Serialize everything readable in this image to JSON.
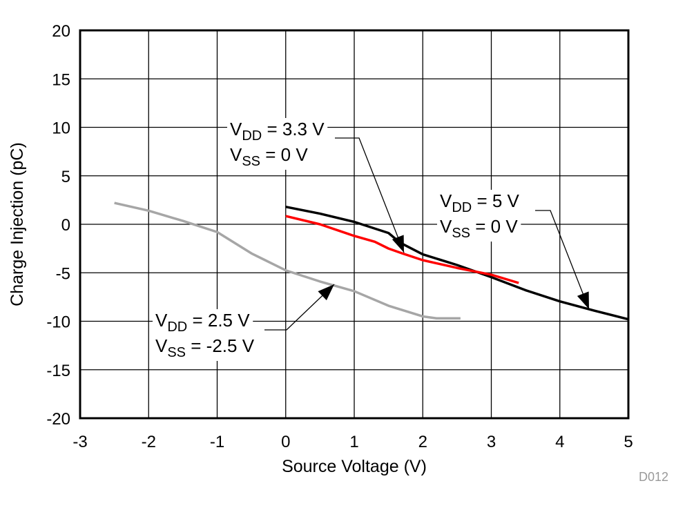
{
  "chart_data": {
    "type": "line",
    "xlabel": "Source Voltage (V)",
    "ylabel": "Charge Injection (pC)",
    "xlim": [
      -3,
      5
    ],
    "ylim": [
      -20,
      20
    ],
    "xticks": [
      -3,
      -2,
      -1,
      0,
      1,
      2,
      3,
      4,
      5
    ],
    "yticks": [
      -20,
      -15,
      -10,
      -5,
      0,
      5,
      10,
      15,
      20
    ],
    "grid": true,
    "footnote": "D012",
    "series": [
      {
        "color": "#000000",
        "x": [
          0,
          0.5,
          1,
          1.5,
          1.67,
          2,
          2.5,
          3,
          3.5,
          4,
          4.5,
          5
        ],
        "y": [
          1.8,
          1.1,
          0.25,
          -0.9,
          -1.9,
          -3.1,
          -4.2,
          -5.45,
          -6.8,
          -7.95,
          -8.9,
          -9.8
        ]
      },
      {
        "color": "#ff0000",
        "x": [
          0,
          0.5,
          1,
          1.3,
          1.5,
          1.7,
          2,
          2.5,
          3,
          3.4
        ],
        "y": [
          0.85,
          0.0,
          -1.2,
          -1.8,
          -2.5,
          -3.0,
          -3.7,
          -4.5,
          -5.2,
          -6.05
        ]
      },
      {
        "color": "#a6a6a6",
        "x": [
          -2.5,
          -2,
          -1.5,
          -1,
          -0.5,
          0,
          0.5,
          1,
          1.5,
          2,
          2.2,
          2.55
        ],
        "y": [
          2.2,
          1.4,
          0.35,
          -0.8,
          -3.0,
          -4.75,
          -5.9,
          -6.9,
          -8.4,
          -9.5,
          -9.7,
          -9.7
        ]
      }
    ],
    "annotations": [
      {
        "line1": {
          "v": "V",
          "sub": "DD",
          "rest": " = 3.3 V"
        },
        "line2": {
          "v": "V",
          "sub": "SS",
          "rest": " = 0 V"
        },
        "points_to_series": 1
      },
      {
        "line1": {
          "v": "V",
          "sub": "DD",
          "rest": " = 5 V"
        },
        "line2": {
          "v": "V",
          "sub": "SS",
          "rest": " = 0 V"
        },
        "points_to_series": 0
      },
      {
        "line1": {
          "v": "V",
          "sub": "DD",
          "rest": " = 2.5 V"
        },
        "line2": {
          "v": "V",
          "sub": "SS",
          "rest": " = -2.5 V"
        },
        "points_to_series": 2
      }
    ]
  }
}
